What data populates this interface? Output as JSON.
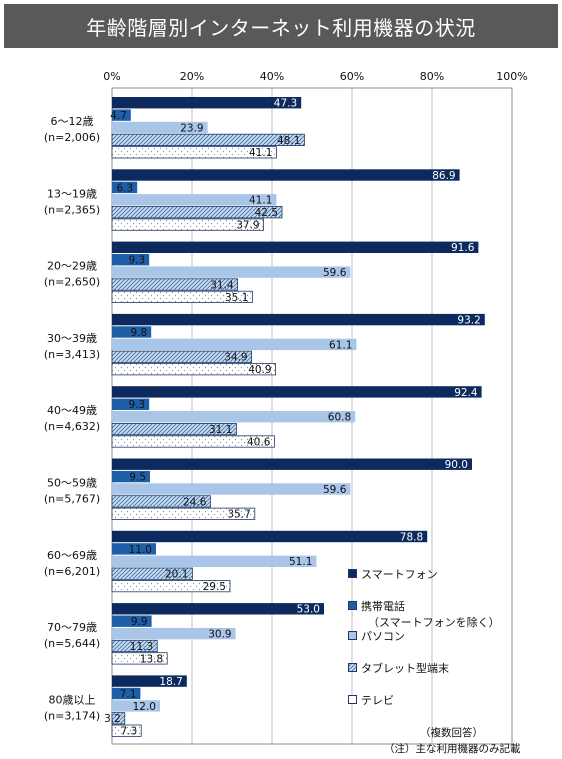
{
  "title": "年齢階層別インターネット利用機器の状況",
  "notes": {
    "multiple": "（複数回答）",
    "main_only": "（注）主な利用機器のみ記載"
  },
  "legend_sub": "（スマートフォンを除く）",
  "colors": {
    "smartphone": "#0d2a5e",
    "mobile": "#1f5fa8",
    "pc": "#a9c5e8",
    "tablet_bg": "#c9dcef",
    "tablet_line": "#3d6ea8",
    "tv_bg": "#ffffff",
    "tv_dot": "#7a8fa8"
  },
  "chart_data": {
    "type": "bar",
    "orientation": "horizontal",
    "xlim": [
      0,
      100
    ],
    "x_ticks": [
      "0%",
      "20%",
      "40%",
      "60%",
      "80%",
      "100%"
    ],
    "categories": [
      {
        "label": "6〜12歳",
        "n": "(n=2,006)"
      },
      {
        "label": "13〜19歳",
        "n": "(n=2,365)"
      },
      {
        "label": "20〜29歳",
        "n": "(n=2,650)"
      },
      {
        "label": "30〜39歳",
        "n": "(n=3,413)"
      },
      {
        "label": "40〜49歳",
        "n": "(n=4,632)"
      },
      {
        "label": "50〜59歳",
        "n": "(n=5,767)"
      },
      {
        "label": "60〜69歳",
        "n": "(n=6,201)"
      },
      {
        "label": "70〜79歳",
        "n": "(n=5,644)"
      },
      {
        "label": "80歳以上",
        "n": "(n=3,174)"
      }
    ],
    "series": [
      {
        "name": "スマートフォン",
        "key": "smartphone",
        "values": [
          47.3,
          86.9,
          91.6,
          93.2,
          92.4,
          90.0,
          78.8,
          53.0,
          18.7
        ]
      },
      {
        "name": "携帯電話",
        "key": "mobile",
        "values": [
          4.7,
          6.3,
          9.3,
          9.8,
          9.3,
          9.5,
          11.0,
          9.9,
          7.1
        ]
      },
      {
        "name": "パソコン",
        "key": "pc",
        "values": [
          23.9,
          41.1,
          59.6,
          61.1,
          60.8,
          59.6,
          51.1,
          30.9,
          12.0
        ]
      },
      {
        "name": "タブレット型端末",
        "key": "tablet",
        "values": [
          48.1,
          42.5,
          31.4,
          34.9,
          31.1,
          24.6,
          20.1,
          11.3,
          3.2
        ]
      },
      {
        "name": "テレビ",
        "key": "tv",
        "values": [
          41.1,
          37.9,
          35.1,
          40.9,
          40.6,
          35.7,
          29.5,
          13.8,
          7.3
        ]
      }
    ]
  }
}
